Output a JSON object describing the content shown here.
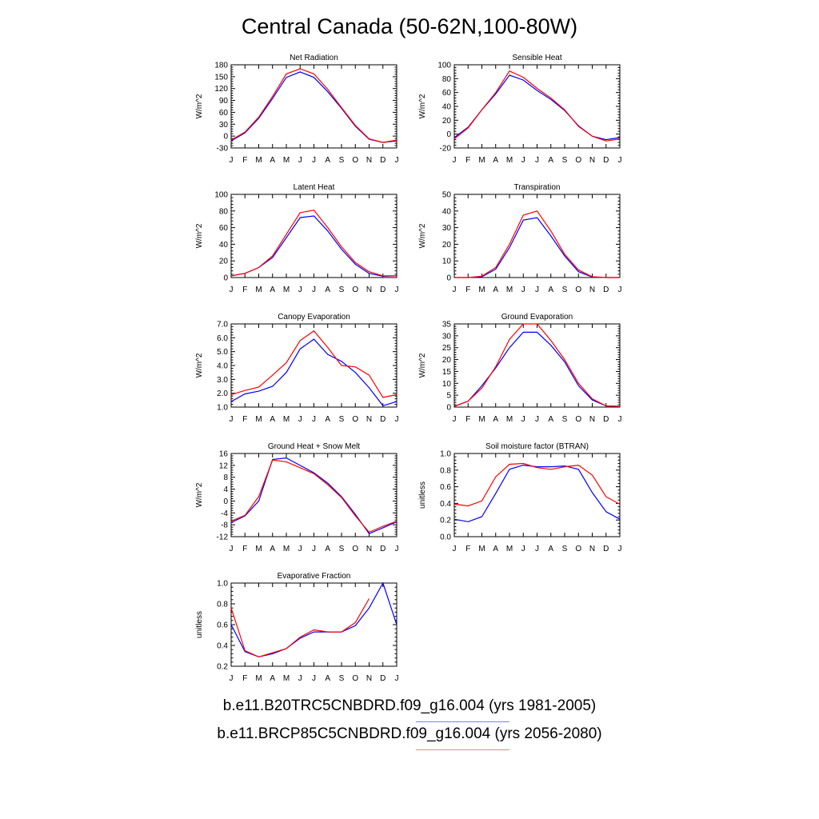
{
  "title": "Central Canada (50-62N,100-80W)",
  "colors": {
    "run1": "#0000ff",
    "run2": "#ff0000"
  },
  "legend": [
    {
      "text": "b.e11.B20TRC5CNBDRD.f09_g16.004 (yrs 1981-2005)",
      "color": "#0000ff"
    },
    {
      "text": "b.e11.BRCP85C5CNBDRD.f09_g16.004 (yrs 2056-2080)",
      "color": "#ff0000"
    }
  ],
  "chart_data": [
    {
      "type": "line",
      "title": "Net Radiation",
      "ylabel": "W/m^2",
      "ylim": [
        -30,
        180
      ],
      "yticks": [
        "-30",
        "0",
        "30",
        "60",
        "90",
        "120",
        "150",
        "180"
      ],
      "ytick_values": [
        -30,
        0,
        30,
        60,
        90,
        120,
        150,
        180
      ],
      "categories": [
        "J",
        "F",
        "M",
        "A",
        "M",
        "J",
        "J",
        "A",
        "S",
        "O",
        "N",
        "D",
        "J"
      ],
      "series": [
        {
          "color": "#0000ff",
          "values": [
            -12,
            8,
            45,
            95,
            148,
            162,
            148,
            112,
            70,
            25,
            -8,
            -16,
            -12
          ]
        },
        {
          "color": "#ff0000",
          "values": [
            -10,
            10,
            48,
            100,
            157,
            170,
            157,
            118,
            72,
            27,
            -7,
            -16,
            -10
          ]
        }
      ]
    },
    {
      "type": "line",
      "title": "Sensible Heat",
      "ylabel": "W/m^2",
      "ylim": [
        -20,
        100
      ],
      "yticks": [
        "-20",
        "0",
        "20",
        "40",
        "60",
        "80",
        "100"
      ],
      "ytick_values": [
        -20,
        0,
        20,
        40,
        60,
        80,
        100
      ],
      "categories": [
        "J",
        "F",
        "M",
        "A",
        "M",
        "J",
        "J",
        "A",
        "S",
        "O",
        "N",
        "D",
        "J"
      ],
      "series": [
        {
          "color": "#0000ff",
          "values": [
            -5,
            10,
            35,
            58,
            85,
            78,
            63,
            50,
            34,
            12,
            -3,
            -8,
            -5
          ]
        },
        {
          "color": "#ff0000",
          "values": [
            -7,
            9,
            35,
            60,
            91,
            82,
            66,
            52,
            35,
            11,
            -3,
            -10,
            -7
          ]
        }
      ]
    },
    {
      "type": "line",
      "title": "Latent Heat",
      "ylabel": "W/m^2",
      "ylim": [
        0,
        100
      ],
      "yticks": [
        "0",
        "20",
        "40",
        "60",
        "80",
        "100"
      ],
      "ytick_values": [
        0,
        20,
        40,
        60,
        80,
        100
      ],
      "categories": [
        "J",
        "F",
        "M",
        "A",
        "M",
        "J",
        "J",
        "A",
        "S",
        "O",
        "N",
        "D",
        "J"
      ],
      "series": [
        {
          "color": "#0000ff",
          "values": [
            2,
            5,
            12,
            24,
            48,
            72,
            74,
            56,
            34,
            16,
            5,
            1.5,
            2
          ]
        },
        {
          "color": "#ff0000",
          "values": [
            2,
            5,
            12,
            26,
            52,
            78,
            81,
            60,
            37,
            18,
            7,
            2,
            2
          ]
        }
      ]
    },
    {
      "type": "line",
      "title": "Transpiration",
      "ylabel": "W/m^2",
      "ylim": [
        0,
        50
      ],
      "yticks": [
        "0",
        "10",
        "20",
        "30",
        "40",
        "50"
      ],
      "ytick_values": [
        0,
        10,
        20,
        30,
        40,
        50
      ],
      "categories": [
        "J",
        "F",
        "M",
        "A",
        "M",
        "J",
        "J",
        "A",
        "S",
        "O",
        "N",
        "D",
        "J"
      ],
      "series": [
        {
          "color": "#0000ff",
          "values": [
            0,
            0,
            0.5,
            5,
            18,
            34.5,
            36,
            25,
            13,
            3.5,
            0.3,
            0,
            0
          ]
        },
        {
          "color": "#ff0000",
          "values": [
            0,
            0,
            0.8,
            6,
            20,
            37.5,
            40,
            28,
            14,
            4.5,
            0.5,
            0,
            0
          ]
        }
      ]
    },
    {
      "type": "line",
      "title": "Canopy Evaporation",
      "ylabel": "W/m^2",
      "ylim": [
        1.0,
        7.0
      ],
      "yticks": [
        "1.0",
        "2.0",
        "3.0",
        "4.0",
        "5.0",
        "6.0",
        "7.0"
      ],
      "ytick_values": [
        1,
        2,
        3,
        4,
        5,
        6,
        7
      ],
      "categories": [
        "J",
        "F",
        "M",
        "A",
        "M",
        "J",
        "J",
        "A",
        "S",
        "O",
        "N",
        "D",
        "J"
      ],
      "series": [
        {
          "color": "#0000ff",
          "values": [
            1.4,
            1.95,
            2.15,
            2.5,
            3.5,
            5.2,
            5.9,
            4.8,
            4.3,
            3.5,
            2.4,
            1.1,
            1.4
          ]
        },
        {
          "color": "#ff0000",
          "values": [
            1.9,
            2.2,
            2.45,
            3.3,
            4.2,
            5.8,
            6.5,
            5.3,
            4.0,
            3.9,
            3.3,
            1.7,
            1.9
          ]
        }
      ]
    },
    {
      "type": "line",
      "title": "Ground Evaporation",
      "ylabel": "W/m^2",
      "ylim": [
        0,
        35
      ],
      "yticks": [
        "0",
        "5",
        "10",
        "15",
        "20",
        "25",
        "30",
        "35"
      ],
      "ytick_values": [
        0,
        5,
        10,
        15,
        20,
        25,
        30,
        35
      ],
      "categories": [
        "J",
        "F",
        "M",
        "A",
        "M",
        "J",
        "J",
        "A",
        "S",
        "O",
        "N",
        "D",
        "J"
      ],
      "series": [
        {
          "color": "#0000ff",
          "values": [
            0.3,
            2.5,
            9,
            16.5,
            25,
            31.5,
            31.5,
            26,
            19,
            9,
            3,
            0.5,
            0.3
          ]
        },
        {
          "color": "#ff0000",
          "values": [
            0.3,
            2.5,
            8,
            17,
            28.5,
            35,
            35,
            28,
            20,
            10,
            3.5,
            0.5,
            0.3
          ]
        }
      ]
    },
    {
      "type": "line",
      "title": "Ground Heat + Snow Melt",
      "ylabel": "W/m^2",
      "ylim": [
        -12,
        16
      ],
      "yticks": [
        "-12",
        "-8",
        "-4",
        "0",
        "4",
        "8",
        "12",
        "16"
      ],
      "ytick_values": [
        -12,
        -8,
        -4,
        0,
        4,
        8,
        12,
        16
      ],
      "categories": [
        "J",
        "F",
        "M",
        "A",
        "M",
        "J",
        "J",
        "A",
        "S",
        "O",
        "N",
        "D",
        "J"
      ],
      "series": [
        {
          "color": "#0000ff",
          "values": [
            -7.3,
            -5,
            0,
            14,
            14.5,
            12,
            9.5,
            6,
            1.5,
            -4.5,
            -11,
            -9,
            -7
          ]
        },
        {
          "color": "#ff0000",
          "values": [
            -6.8,
            -4.8,
            1.5,
            13.8,
            13.2,
            11.2,
            9.2,
            5.5,
            1.2,
            -5,
            -10.5,
            -8.5,
            -6.8
          ]
        }
      ]
    },
    {
      "type": "line",
      "title": "Soil moisture factor (BTRAN)",
      "ylabel": "unitless",
      "ylim": [
        0.0,
        1.0
      ],
      "yticks": [
        "0.0",
        "0.2",
        "0.4",
        "0.6",
        "0.8",
        "1.0"
      ],
      "ytick_values": [
        0,
        0.2,
        0.4,
        0.6,
        0.8,
        1.0
      ],
      "categories": [
        "J",
        "F",
        "M",
        "A",
        "M",
        "J",
        "J",
        "A",
        "S",
        "O",
        "N",
        "D",
        "J"
      ],
      "series": [
        {
          "color": "#0000ff",
          "values": [
            0.21,
            0.18,
            0.24,
            0.52,
            0.81,
            0.86,
            0.84,
            0.84,
            0.85,
            0.81,
            0.53,
            0.3,
            0.21
          ]
        },
        {
          "color": "#ff0000",
          "values": [
            0.39,
            0.37,
            0.43,
            0.72,
            0.87,
            0.88,
            0.83,
            0.81,
            0.84,
            0.86,
            0.74,
            0.48,
            0.39
          ]
        }
      ]
    },
    {
      "type": "line",
      "title": "Evaporative Fraction",
      "ylabel": "unitless",
      "ylim": [
        0.2,
        1.0
      ],
      "yticks": [
        "0.2",
        "0.4",
        "0.6",
        "0.8",
        "1.0"
      ],
      "ytick_values": [
        0.2,
        0.4,
        0.6,
        0.8,
        1.0
      ],
      "categories": [
        "J",
        "F",
        "M",
        "A",
        "M",
        "J",
        "J",
        "A",
        "S",
        "O",
        "N",
        "D",
        "J"
      ],
      "series": [
        {
          "color": "#0000ff",
          "values": [
            0.6,
            0.34,
            0.29,
            0.32,
            0.37,
            0.47,
            0.53,
            0.53,
            0.53,
            0.59,
            0.76,
            1.0,
            0.6
          ]
        },
        {
          "color": "#ff0000",
          "values": [
            0.76,
            0.35,
            0.29,
            0.33,
            0.37,
            0.48,
            0.55,
            0.53,
            0.53,
            0.62,
            0.85,
            null,
            null
          ]
        }
      ]
    }
  ]
}
